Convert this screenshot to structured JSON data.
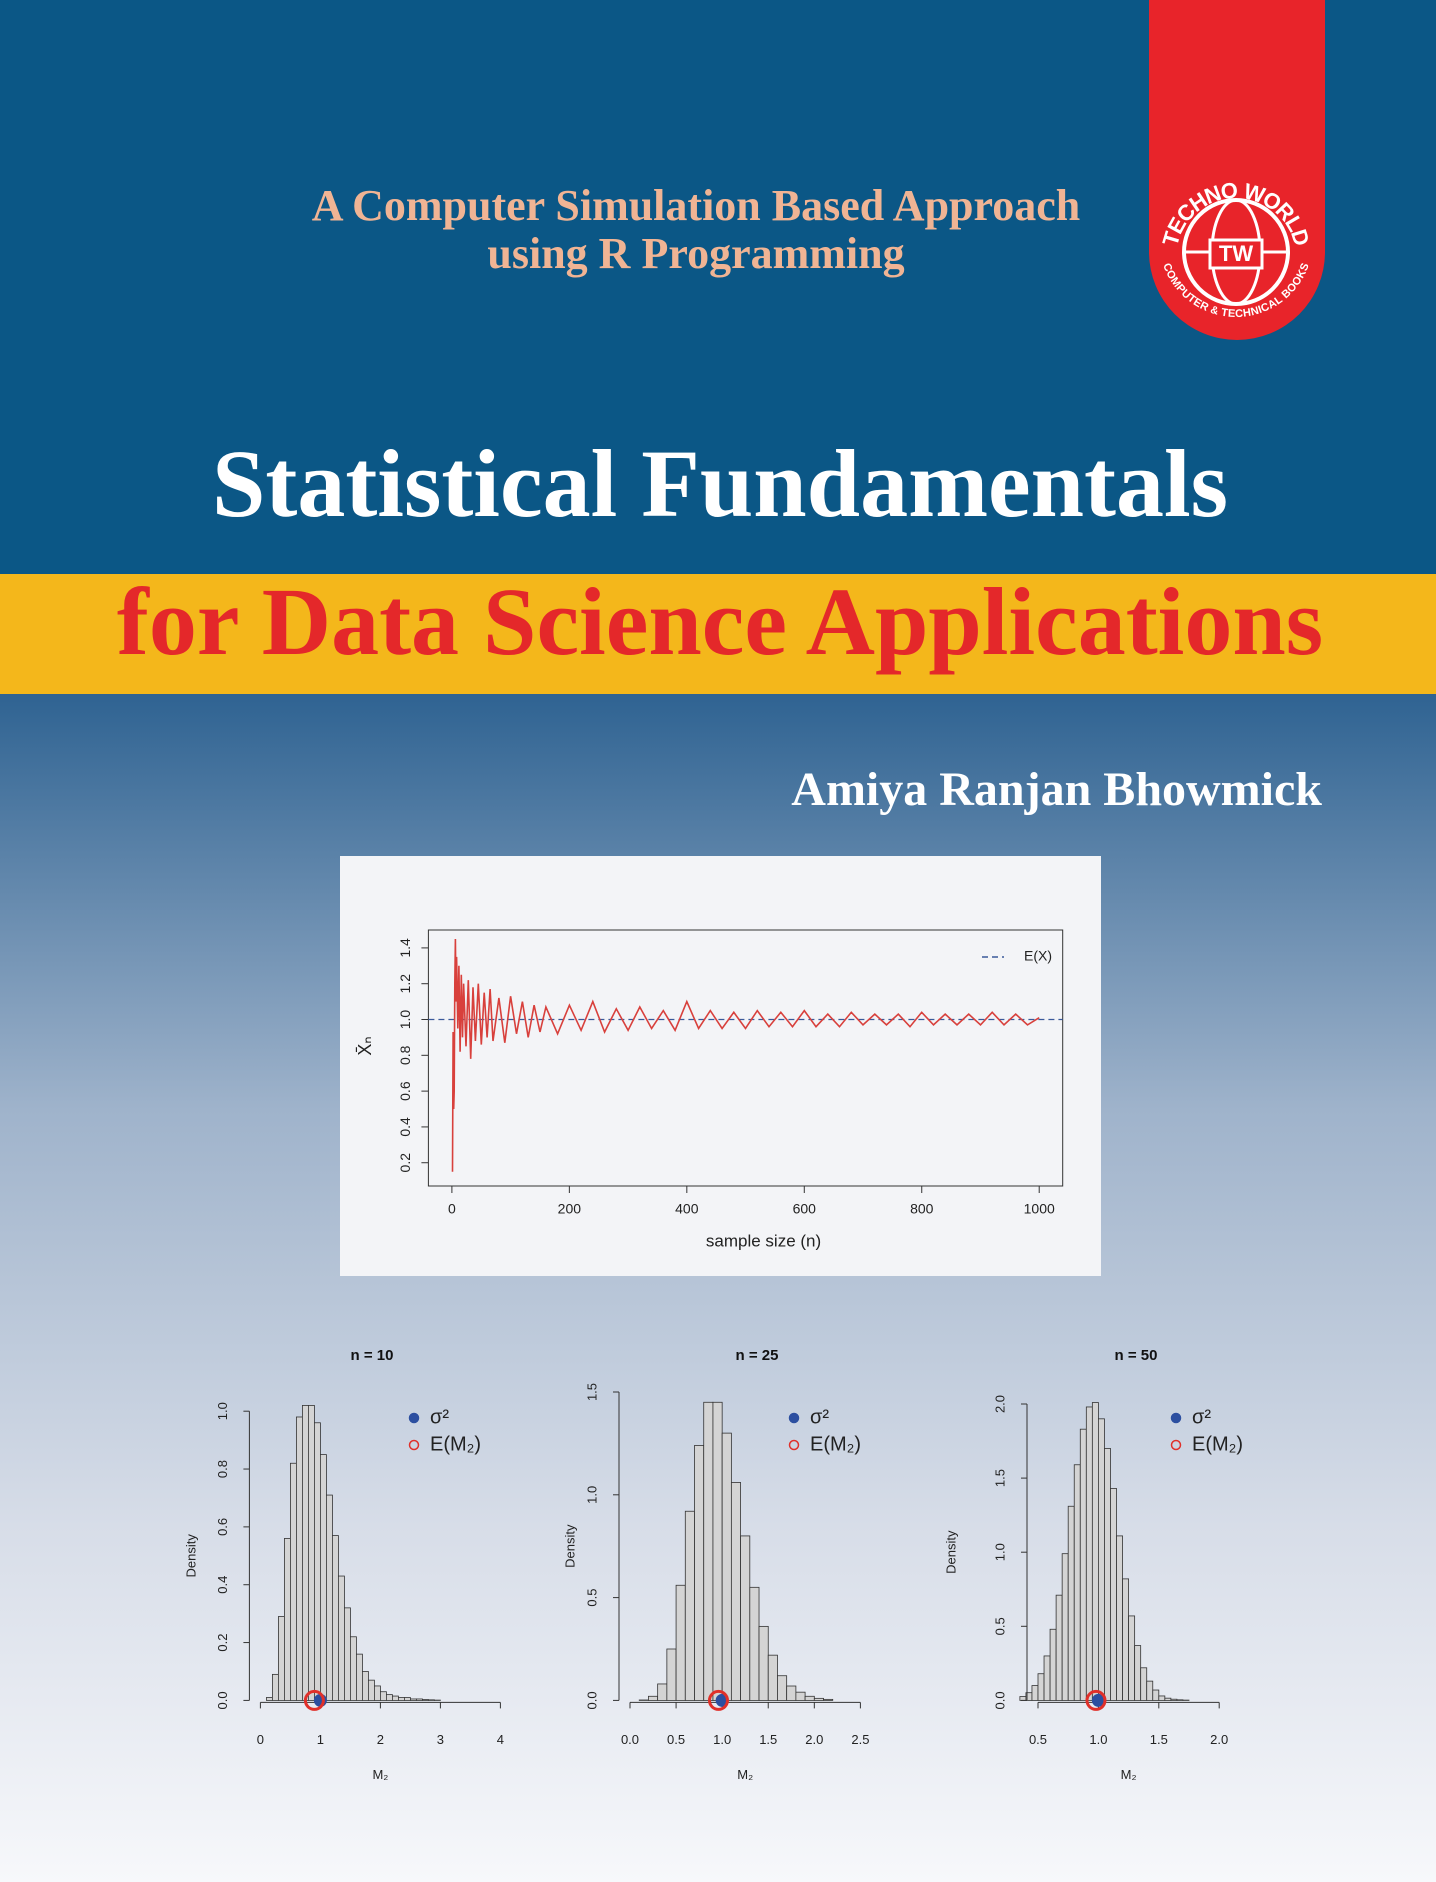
{
  "cover": {
    "subtitle_line1": "A Computer Simulation Based Approach",
    "subtitle_line2": "using R Programming",
    "title": "Statistical Fundamentals",
    "title_line2": "for Data Science Applications",
    "author": "Amiya Ranjan Bhowmick",
    "logo": {
      "top": "TECHNO WORLD",
      "center": "TW",
      "bottom": "COMPUTER & TECHNICAL BOOKS"
    }
  },
  "chart_data": [
    {
      "type": "line",
      "xlabel": "sample size (n)",
      "ylabel": "X̄ₙ",
      "color": "#d8403c",
      "x": [
        1,
        2,
        3,
        4,
        5,
        6,
        7,
        8,
        10,
        12,
        14,
        16,
        18,
        20,
        24,
        28,
        32,
        36,
        40,
        45,
        50,
        55,
        60,
        65,
        70,
        80,
        90,
        100,
        110,
        120,
        130,
        140,
        150,
        160,
        180,
        200,
        220,
        240,
        260,
        280,
        300,
        320,
        340,
        360,
        380,
        400,
        420,
        440,
        460,
        480,
        500,
        520,
        540,
        560,
        580,
        600,
        620,
        640,
        660,
        680,
        700,
        720,
        740,
        760,
        780,
        800,
        820,
        840,
        860,
        880,
        900,
        920,
        940,
        960,
        980,
        1000
      ],
      "values": [
        0.15,
        0.93,
        0.5,
        0.6,
        1.2,
        1.45,
        1.1,
        1.35,
        0.95,
        1.3,
        0.82,
        1.25,
        0.9,
        1.2,
        0.85,
        1.22,
        0.78,
        1.18,
        0.88,
        1.2,
        0.86,
        1.15,
        0.9,
        1.17,
        0.88,
        1.12,
        0.87,
        1.13,
        0.92,
        1.1,
        0.9,
        1.08,
        0.93,
        1.07,
        0.92,
        1.08,
        0.94,
        1.1,
        0.93,
        1.06,
        0.94,
        1.07,
        0.95,
        1.05,
        0.94,
        1.1,
        0.95,
        1.05,
        0.95,
        1.04,
        0.95,
        1.05,
        0.96,
        1.04,
        0.96,
        1.05,
        0.96,
        1.03,
        0.96,
        1.04,
        0.97,
        1.03,
        0.97,
        1.03,
        0.96,
        1.04,
        0.97,
        1.03,
        0.97,
        1.03,
        0.97,
        1.04,
        0.97,
        1.03,
        0.97,
        1.01
      ],
      "hline": {
        "name": "E(X)",
        "value": 1,
        "color": "#3a5a9a"
      },
      "xlim": [
        -40,
        1040
      ],
      "ylim": [
        0.07,
        1.5
      ],
      "xticks": [
        0,
        200,
        400,
        600,
        800,
        1000
      ],
      "yticks": [
        0.2,
        0.4,
        0.6,
        0.8,
        {
          "value": 1,
          "label": "1.0"
        },
        1.2,
        1.4
      ]
    },
    {
      "type": "histogram",
      "title": "n = 10",
      "xlabel": "M₂",
      "ylabel": "Density",
      "color": "#d4d4d4",
      "bins": [
        0,
        0.1,
        0.2,
        0.3,
        0.4,
        0.5,
        0.6,
        0.7,
        0.8,
        0.9,
        1,
        1.1,
        1.2,
        1.3,
        1.4,
        1.5,
        1.6,
        1.7,
        1.8,
        1.9,
        2,
        2.1,
        2.2,
        2.3,
        2.4,
        2.5,
        2.6,
        2.7,
        2.8,
        2.9,
        3
      ],
      "counts": [
        0,
        0.01,
        0.09,
        0.29,
        0.56,
        0.82,
        0.98,
        1.02,
        1.02,
        0.96,
        0.85,
        0.71,
        0.57,
        0.43,
        0.32,
        0.22,
        0.16,
        0.1,
        0.07,
        0.05,
        0.03,
        0.02,
        0.015,
        0.01,
        0.01,
        0.005,
        0.005,
        0.003,
        0.002,
        0.001
      ],
      "points": [
        {
          "name": "σ²",
          "value": 1,
          "color": "#2c4fa0",
          "filled": true
        },
        {
          "name": "E(M₂)",
          "value": 0.9,
          "color": "#e0302a",
          "filled": false
        }
      ],
      "xlim": [
        0,
        4
      ],
      "ylim": [
        0,
        1
      ],
      "xticks": [
        0,
        1,
        2,
        3,
        4
      ],
      "yticks": [
        {
          "value": 0,
          "label": "0.0"
        },
        0.2,
        0.4,
        0.6,
        0.8,
        {
          "value": 1,
          "label": "1.0"
        }
      ]
    },
    {
      "type": "histogram",
      "title": "n = 25",
      "xlabel": "M₂",
      "ylabel": "Density",
      "color": "#d4d4d4",
      "bins": [
        0.1,
        0.2,
        0.3,
        0.4,
        0.5,
        0.6,
        0.7,
        0.8,
        0.9,
        1,
        1.1,
        1.2,
        1.3,
        1.4,
        1.5,
        1.6,
        1.7,
        1.8,
        1.9,
        2,
        2.1,
        2.2
      ],
      "counts": [
        0.002,
        0.02,
        0.08,
        0.25,
        0.56,
        0.92,
        1.24,
        1.45,
        1.45,
        1.3,
        1.06,
        0.8,
        0.55,
        0.36,
        0.22,
        0.12,
        0.07,
        0.04,
        0.02,
        0.01,
        0.005
      ],
      "points": [
        {
          "name": "σ²",
          "value": 1,
          "color": "#2c4fa0",
          "filled": true
        },
        {
          "name": "E(M₂)",
          "value": 0.96,
          "color": "#e0302a",
          "filled": false
        }
      ],
      "xlim": [
        0,
        2.5
      ],
      "ylim": [
        0,
        1.5
      ],
      "xticks": [
        {
          "value": 0,
          "label": "0.0"
        },
        0.5,
        {
          "value": 1,
          "label": "1.0"
        },
        1.5,
        {
          "value": 2,
          "label": "2.0"
        },
        2.5
      ],
      "yticks": [
        {
          "value": 0,
          "label": "0.0"
        },
        0.5,
        {
          "value": 1,
          "label": "1.0"
        },
        1.5
      ]
    },
    {
      "type": "histogram",
      "title": "n = 50",
      "xlabel": "M₂",
      "ylabel": "Density",
      "color": "#d4d4d4",
      "bins": [
        0.35,
        0.4,
        0.45,
        0.5,
        0.55,
        0.6,
        0.65,
        0.7,
        0.75,
        0.8,
        0.85,
        0.9,
        0.95,
        1,
        1.05,
        1.1,
        1.15,
        1.2,
        1.25,
        1.3,
        1.35,
        1.4,
        1.45,
        1.5,
        1.55,
        1.6,
        1.65,
        1.7,
        1.75
      ],
      "counts": [
        0.026,
        0.052,
        0.1,
        0.18,
        0.3,
        0.48,
        0.71,
        0.99,
        1.31,
        1.59,
        1.83,
        1.98,
        2.01,
        1.9,
        1.7,
        1.43,
        1.11,
        0.82,
        0.57,
        0.37,
        0.22,
        0.13,
        0.07,
        0.03,
        0.015,
        0.008,
        0.004,
        0.002
      ],
      "points": [
        {
          "name": "σ²",
          "value": 1,
          "color": "#2c4fa0",
          "filled": true
        },
        {
          "name": "E(M₂)",
          "value": 0.98,
          "color": "#e0302a",
          "filled": false
        }
      ],
      "xlim": [
        0.5,
        2
      ],
      "ylim": [
        0,
        2
      ],
      "xticks": [
        0.5,
        {
          "value": 1,
          "label": "1.0"
        },
        1.5,
        {
          "value": 2,
          "label": "2.0"
        }
      ],
      "yticks": [
        {
          "value": 0,
          "label": "0.0"
        },
        0.5,
        {
          "value": 1,
          "label": "1.0"
        },
        1.5,
        {
          "value": 2,
          "label": "2.0"
        }
      ]
    }
  ]
}
